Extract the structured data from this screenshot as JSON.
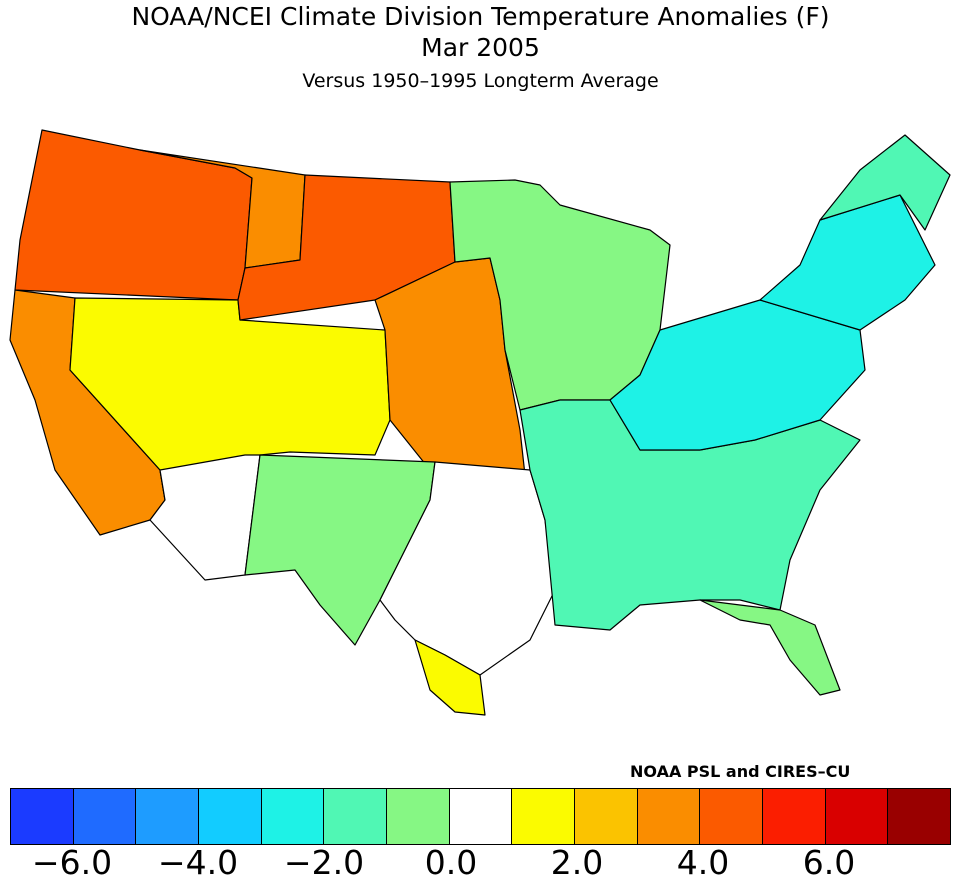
{
  "header": {
    "title": "NOAA/NCEI Climate Division Temperature Anomalies (F)",
    "date": "Mar 2005",
    "subtitle": "Versus 1950–1995 Longterm Average"
  },
  "credit": "NOAA PSL and CIRES–CU",
  "colorbar": {
    "colors": [
      "#1b3bff",
      "#1f6bff",
      "#1e9cff",
      "#12ccff",
      "#1ef2e6",
      "#50f7b4",
      "#86f784",
      "#ffffff",
      "#fbfb00",
      "#fbc300",
      "#fa8d00",
      "#fb5a00",
      "#fb1e00",
      "#d90000",
      "#990000"
    ],
    "labels": [
      "−6.0",
      "−4.0",
      "−2.0",
      "0.0",
      "2.0",
      "4.0",
      "6.0"
    ]
  },
  "map_regions": [
    {
      "name": "pacific-northwest",
      "value": 4.5
    },
    {
      "name": "california",
      "value": 3.0
    },
    {
      "name": "great-basin",
      "value": 1.5
    },
    {
      "name": "northern-rockies",
      "value": 3.0
    },
    {
      "name": "northern-plains",
      "value": 4.5
    },
    {
      "name": "central-plains",
      "value": 3.5
    },
    {
      "name": "southwest",
      "value": 0.0
    },
    {
      "name": "new-mexico-west-texas",
      "value": -0.5
    },
    {
      "name": "texas",
      "value": 0.0
    },
    {
      "name": "south-texas",
      "value": 1.5
    },
    {
      "name": "upper-midwest",
      "value": -1.0
    },
    {
      "name": "southeast",
      "value": -1.5
    },
    {
      "name": "ohio-valley",
      "value": -2.5
    },
    {
      "name": "northeast",
      "value": -2.5
    },
    {
      "name": "maine",
      "value": -1.5
    },
    {
      "name": "florida",
      "value": -0.5
    }
  ]
}
